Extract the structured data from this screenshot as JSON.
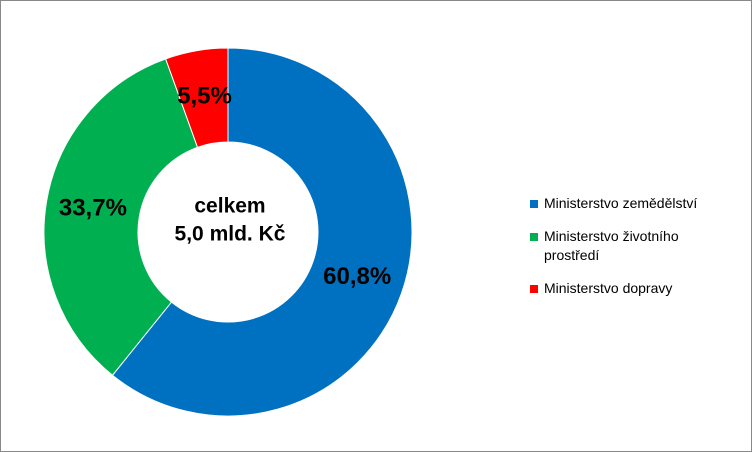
{
  "chart_data": {
    "type": "donut",
    "categories": [
      "Ministerstvo zemědělství",
      "Ministerstvo životního prostředí",
      "Ministerstvo dopravy"
    ],
    "values": [
      60.8,
      33.7,
      5.5
    ],
    "value_labels": [
      "60,8%",
      "33,7%",
      "5,5%"
    ],
    "colors": [
      "#0070c0",
      "#00b050",
      "#ff0000"
    ],
    "center_label": [
      "celkem",
      "5,0 mld. Kč"
    ],
    "legend": "right"
  }
}
